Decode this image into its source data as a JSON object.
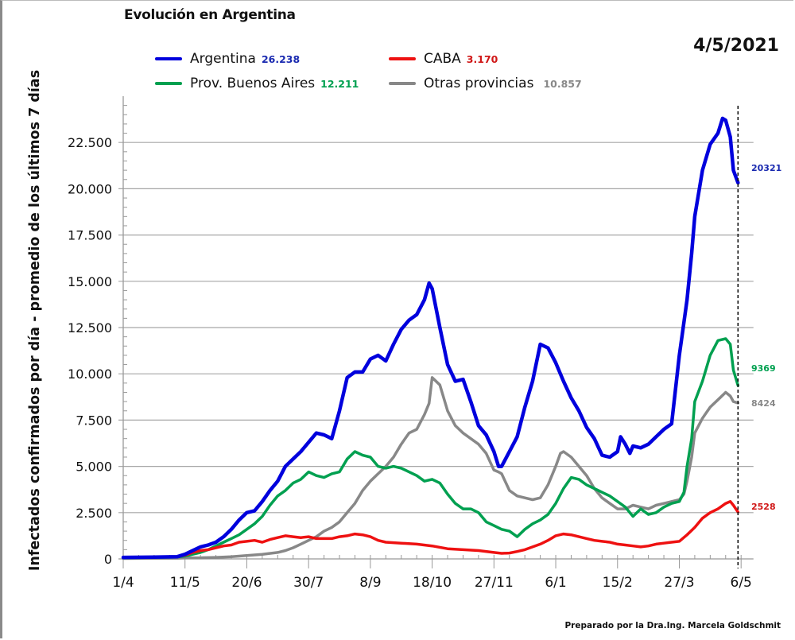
{
  "chart_data": {
    "type": "line",
    "title": "Evolución en Argentina",
    "date": "4/5/2021",
    "xlabel": "",
    "ylabel": "Infectados confirmados por día - promedio de los últimos 7 días",
    "ylim": [
      0,
      25000
    ],
    "yticks": [
      "0",
      "2.500",
      "5.000",
      "7.500",
      "10.000",
      "12.500",
      "15.000",
      "17.500",
      "20.000",
      "22.500"
    ],
    "ytick_values": [
      0,
      2500,
      5000,
      7500,
      10000,
      12500,
      15000,
      17500,
      20000,
      22500
    ],
    "xticks": [
      "1/4",
      "11/5",
      "20/6",
      "30/7",
      "8/9",
      "18/10",
      "27/11",
      "6/1",
      "15/2",
      "27/3",
      "6/5"
    ],
    "xtick_days": [
      0,
      40,
      80,
      120,
      160,
      200,
      240,
      280,
      320,
      360,
      400
    ],
    "x_unit": "days since 1/4/2020",
    "xlim": [
      0,
      408
    ],
    "grid": "horizontal",
    "legend_position": "top",
    "marker_line": {
      "day": 398,
      "label": "4/5/2021",
      "style": "dashed"
    },
    "series": [
      {
        "name": "Argentina",
        "legend_value": "26.238",
        "end_value": "20321",
        "color": "#0000dd",
        "x": [
          0,
          20,
          35,
          40,
          45,
          50,
          55,
          60,
          65,
          70,
          75,
          80,
          85,
          90,
          95,
          100,
          105,
          110,
          115,
          120,
          125,
          130,
          135,
          140,
          145,
          150,
          155,
          160,
          165,
          170,
          175,
          180,
          185,
          190,
          195,
          198,
          200,
          205,
          210,
          215,
          220,
          225,
          230,
          235,
          240,
          243,
          245,
          250,
          255,
          260,
          265,
          270,
          275,
          280,
          283,
          285,
          290,
          295,
          300,
          305,
          310,
          315,
          320,
          322,
          325,
          328,
          330,
          335,
          340,
          345,
          350,
          355,
          360,
          362,
          365,
          368,
          370,
          375,
          380,
          385,
          388,
          390,
          393,
          395,
          398
        ],
        "values": [
          80,
          100,
          120,
          250,
          450,
          650,
          750,
          900,
          1200,
          1600,
          2100,
          2500,
          2600,
          3100,
          3700,
          4200,
          5000,
          5400,
          5800,
          6300,
          6800,
          6700,
          6500,
          8000,
          9800,
          10100,
          10100,
          10800,
          11000,
          10700,
          11600,
          12400,
          12900,
          13200,
          14000,
          14900,
          14600,
          12500,
          10500,
          9600,
          9700,
          8500,
          7200,
          6700,
          5800,
          5000,
          5000,
          5800,
          6600,
          8200,
          9600,
          11600,
          11400,
          10600,
          10000,
          9600,
          8700,
          8000,
          7100,
          6500,
          5600,
          5500,
          5800,
          6600,
          6200,
          5700,
          6100,
          6000,
          6200,
          6600,
          7000,
          7300,
          11000,
          12200,
          14000,
          16500,
          18500,
          21000,
          22400,
          23000,
          23800,
          23700,
          22800,
          21000,
          20321
        ]
      },
      {
        "name": "CABA",
        "legend_value": "3.170",
        "end_value": "2528",
        "color": "#ee1111",
        "x": [
          0,
          20,
          35,
          40,
          45,
          50,
          55,
          60,
          65,
          70,
          75,
          80,
          85,
          90,
          95,
          100,
          105,
          110,
          115,
          120,
          125,
          130,
          135,
          140,
          145,
          150,
          155,
          160,
          165,
          170,
          180,
          190,
          200,
          210,
          220,
          230,
          240,
          245,
          250,
          255,
          260,
          265,
          270,
          275,
          280,
          285,
          290,
          295,
          300,
          305,
          310,
          315,
          320,
          325,
          330,
          335,
          340,
          345,
          350,
          355,
          360,
          365,
          370,
          375,
          380,
          385,
          390,
          393,
          395,
          398
        ],
        "values": [
          80,
          100,
          110,
          200,
          350,
          450,
          500,
          600,
          700,
          750,
          900,
          950,
          1000,
          900,
          1050,
          1150,
          1250,
          1200,
          1150,
          1200,
          1100,
          1100,
          1100,
          1200,
          1250,
          1350,
          1300,
          1200,
          1000,
          900,
          850,
          800,
          700,
          550,
          500,
          450,
          350,
          300,
          320,
          400,
          500,
          650,
          800,
          1000,
          1250,
          1350,
          1300,
          1200,
          1100,
          1000,
          950,
          900,
          800,
          750,
          700,
          650,
          700,
          800,
          850,
          900,
          950,
          1300,
          1700,
          2200,
          2500,
          2700,
          3000,
          3100,
          2900,
          2528
        ]
      },
      {
        "name": "Prov. Buenos Aires",
        "legend_value": "12.211",
        "end_value": "9369",
        "color": "#00a050",
        "x": [
          0,
          20,
          35,
          40,
          45,
          50,
          55,
          60,
          65,
          70,
          75,
          80,
          85,
          90,
          95,
          100,
          105,
          110,
          115,
          120,
          125,
          130,
          135,
          140,
          145,
          150,
          155,
          160,
          165,
          170,
          175,
          180,
          185,
          190,
          195,
          200,
          205,
          210,
          215,
          220,
          225,
          230,
          235,
          240,
          245,
          250,
          255,
          260,
          265,
          270,
          275,
          280,
          285,
          290,
          295,
          300,
          305,
          310,
          315,
          320,
          325,
          330,
          335,
          340,
          345,
          350,
          355,
          360,
          363,
          365,
          368,
          370,
          375,
          380,
          385,
          390,
          393,
          395,
          398
        ],
        "values": [
          60,
          80,
          100,
          150,
          250,
          350,
          500,
          700,
          900,
          1100,
          1300,
          1600,
          1900,
          2300,
          2900,
          3400,
          3700,
          4100,
          4300,
          4700,
          4500,
          4400,
          4600,
          4700,
          5400,
          5800,
          5600,
          5500,
          5000,
          4900,
          5000,
          4900,
          4700,
          4500,
          4200,
          4300,
          4100,
          3500,
          3000,
          2700,
          2700,
          2500,
          2000,
          1800,
          1600,
          1500,
          1200,
          1600,
          1900,
          2100,
          2400,
          3000,
          3800,
          4400,
          4300,
          4000,
          3800,
          3600,
          3400,
          3100,
          2800,
          2300,
          2700,
          2400,
          2500,
          2800,
          3000,
          3100,
          3600,
          5000,
          6500,
          8500,
          9600,
          11000,
          11800,
          11900,
          11600,
          10200,
          9369
        ]
      },
      {
        "name": "Otras provincias",
        "legend_value": "10.857",
        "end_value": "8424",
        "color": "#888888",
        "x": [
          0,
          20,
          35,
          40,
          50,
          60,
          70,
          80,
          90,
          100,
          105,
          110,
          115,
          120,
          125,
          130,
          135,
          140,
          145,
          150,
          155,
          160,
          165,
          170,
          175,
          180,
          185,
          190,
          195,
          198,
          200,
          205,
          210,
          215,
          220,
          225,
          230,
          235,
          240,
          243,
          245,
          250,
          255,
          260,
          265,
          270,
          275,
          280,
          283,
          285,
          290,
          295,
          300,
          305,
          310,
          315,
          320,
          325,
          330,
          335,
          340,
          345,
          350,
          355,
          360,
          363,
          365,
          368,
          370,
          375,
          380,
          385,
          390,
          393,
          395,
          398
        ],
        "values": [
          20,
          30,
          40,
          50,
          60,
          80,
          120,
          180,
          250,
          350,
          450,
          600,
          800,
          1000,
          1200,
          1500,
          1700,
          2000,
          2500,
          3000,
          3700,
          4200,
          4600,
          5000,
          5500,
          6200,
          6800,
          7000,
          7800,
          8400,
          9800,
          9400,
          8000,
          7200,
          6800,
          6500,
          6200,
          5700,
          4800,
          4700,
          4600,
          3700,
          3400,
          3300,
          3200,
          3300,
          4000,
          5000,
          5700,
          5800,
          5500,
          5000,
          4500,
          3800,
          3300,
          3000,
          2700,
          2700,
          2900,
          2800,
          2700,
          2900,
          3000,
          3100,
          3200,
          3500,
          4200,
          5500,
          6800,
          7600,
          8200,
          8600,
          9000,
          8800,
          8500,
          8424
        ]
      }
    ]
  },
  "legend": {
    "argentina": {
      "label": "Argentina",
      "value": "26.238"
    },
    "caba": {
      "label": "CABA",
      "value": "3.170"
    },
    "pba": {
      "label": "Prov. Buenos Aires",
      "value": "12.211"
    },
    "otras": {
      "label": "Otras provincias",
      "value": "10.857"
    }
  },
  "credit": "Preparado por la Dra.Ing. Marcela Goldschmit"
}
